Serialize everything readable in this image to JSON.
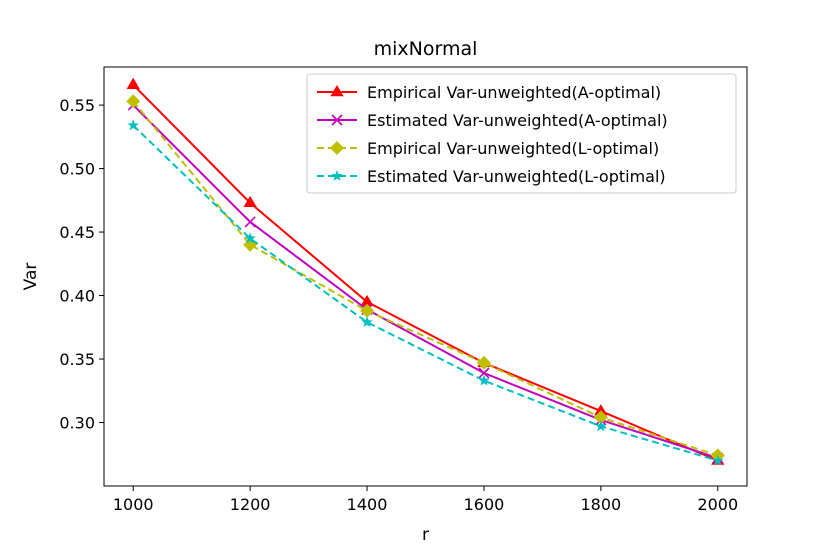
{
  "chart_data": {
    "type": "line",
    "title": "mixNormal",
    "xlabel": "r",
    "ylabel": "Var",
    "x": [
      1000,
      1200,
      1400,
      1600,
      1800,
      2000
    ],
    "x_ticks": [
      "1000",
      "1200",
      "1400",
      "1600",
      "1800",
      "2000"
    ],
    "y_ticks": [
      "0.30",
      "0.35",
      "0.40",
      "0.45",
      "0.50",
      "0.55"
    ],
    "xlim": [
      950,
      2050
    ],
    "ylim": [
      0.25,
      0.58
    ],
    "grid": false,
    "legend_position": "top-right",
    "series": [
      {
        "name": "Empirical Var-unweighted(A-optimal)",
        "color": "#ff0000",
        "linestyle": "solid",
        "marker": "triangle",
        "values": [
          0.566,
          0.473,
          0.395,
          0.347,
          0.309,
          0.27
        ]
      },
      {
        "name": "Estimated Var-unweighted(A-optimal)",
        "color": "#bf00bf",
        "linestyle": "solid",
        "marker": "x",
        "values": [
          0.55,
          0.458,
          0.389,
          0.339,
          0.302,
          0.272
        ]
      },
      {
        "name": "Empirical Var-unweighted(L-optimal)",
        "color": "#bfbf00",
        "linestyle": "dashed",
        "marker": "diamond",
        "values": [
          0.553,
          0.44,
          0.388,
          0.347,
          0.304,
          0.274
        ]
      },
      {
        "name": "Estimated Var-unweighted(L-optimal)",
        "color": "#00bfbf",
        "linestyle": "dashed",
        "marker": "star",
        "values": [
          0.534,
          0.445,
          0.379,
          0.333,
          0.297,
          0.27
        ]
      }
    ]
  }
}
